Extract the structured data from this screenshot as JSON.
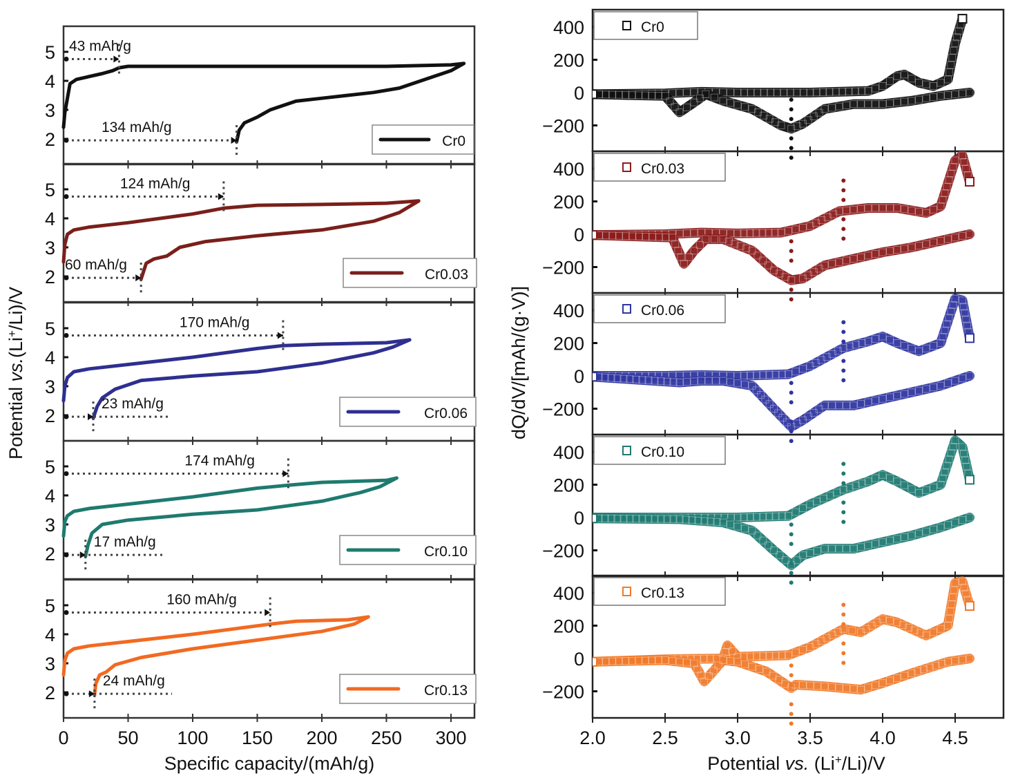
{
  "chart_data": [
    {
      "type": "line",
      "title": "",
      "xlabel": "Specific capacity/(mAh/g)",
      "ylabel": "Potential vs.(Li+/Li)/V",
      "ylabel_parts": {
        "pre": "Potential ",
        "italic": "vs.",
        "post": "(Li",
        "sup": "+",
        "tail": "/Li)/V"
      },
      "xlim": [
        0,
        320
      ],
      "ylim": [
        1,
        6
      ],
      "xticks": [
        0,
        50,
        100,
        150,
        200,
        250,
        300
      ],
      "xtick_labels": [
        "0",
        "50",
        "100",
        "150",
        "200",
        "250",
        "300"
      ],
      "yticks": [
        2,
        3,
        4,
        5
      ],
      "ytick_labels": [
        "2",
        "3",
        "4",
        "5"
      ],
      "grid": false,
      "legend_position": "bottom-right",
      "panels": [
        {
          "name": "Cr0",
          "color": "#111111",
          "charge": {
            "x": [
              0,
              1,
              3,
              5,
              10,
              20,
              30,
              38,
              43,
              50,
              100,
              150,
              200,
              250,
              300,
              310
            ],
            "y": [
              2.4,
              2.9,
              3.4,
              3.9,
              4.05,
              4.15,
              4.25,
              4.35,
              4.45,
              4.5,
              4.5,
              4.5,
              4.5,
              4.5,
              4.55,
              4.6
            ]
          },
          "discharge": {
            "x": [
              310,
              300,
              280,
              260,
              240,
              220,
              200,
              180,
              160,
              150,
              140,
              136,
              134
            ],
            "y": [
              4.6,
              4.35,
              4.05,
              3.75,
              3.6,
              3.5,
              3.4,
              3.3,
              3.0,
              2.75,
              2.55,
              2.3,
              1.9
            ]
          },
          "annotations": [
            {
              "label": "43 mAh/g",
              "x": 43,
              "y": 4.75
            },
            {
              "label": "134 mAh/g",
              "x": 134,
              "y": 1.95
            }
          ]
        },
        {
          "name": "Cr0.03",
          "color": "#7a1f1a",
          "charge": {
            "x": [
              0,
              1,
              3,
              8,
              20,
              50,
              100,
              124,
              150,
              200,
              250,
              275
            ],
            "y": [
              2.5,
              3.1,
              3.45,
              3.6,
              3.7,
              3.85,
              4.15,
              4.35,
              4.45,
              4.48,
              4.52,
              4.6
            ]
          },
          "discharge": {
            "x": [
              275,
              260,
              240,
              200,
              150,
              110,
              90,
              80,
              70,
              64,
              60
            ],
            "y": [
              4.6,
              4.2,
              3.9,
              3.6,
              3.4,
              3.2,
              3.0,
              2.7,
              2.6,
              2.45,
              1.9
            ]
          },
          "annotations": [
            {
              "label": "124 mAh/g",
              "x": 124,
              "y": 4.75
            },
            {
              "label": "60 mAh/g",
              "x": 60,
              "y": 1.95
            }
          ]
        },
        {
          "name": "Cr0.06",
          "color": "#2e2f8f",
          "charge": {
            "x": [
              0,
              1,
              3,
              8,
              20,
              50,
              100,
              150,
              170,
              200,
              250,
              268
            ],
            "y": [
              2.5,
              3.0,
              3.3,
              3.5,
              3.6,
              3.75,
              4.0,
              4.3,
              4.4,
              4.45,
              4.5,
              4.6
            ]
          },
          "discharge": {
            "x": [
              268,
              255,
              240,
              200,
              150,
              100,
              60,
              40,
              30,
              26,
              23
            ],
            "y": [
              4.6,
              4.35,
              4.15,
              3.8,
              3.5,
              3.35,
              3.2,
              2.9,
              2.6,
              2.3,
              1.9
            ]
          },
          "annotations": [
            {
              "label": "170 mAh/g",
              "x": 170,
              "y": 4.75
            },
            {
              "label": "23 mAh/g",
              "x": 23,
              "y": 1.95
            }
          ]
        },
        {
          "name": "Cr0.10",
          "color": "#1f7a6f",
          "charge": {
            "x": [
              0,
              1,
              3,
              8,
              20,
              50,
              100,
              150,
              174,
              200,
              250,
              258
            ],
            "y": [
              2.6,
              3.1,
              3.3,
              3.45,
              3.55,
              3.7,
              3.95,
              4.25,
              4.35,
              4.45,
              4.52,
              4.6
            ]
          },
          "discharge": {
            "x": [
              258,
              245,
              230,
              200,
              150,
              100,
              50,
              30,
              22,
              19,
              17
            ],
            "y": [
              4.6,
              4.3,
              4.1,
              3.8,
              3.5,
              3.35,
              3.15,
              3.0,
              2.7,
              2.3,
              1.9
            ]
          },
          "annotations": [
            {
              "label": "174 mAh/g",
              "x": 174,
              "y": 4.75
            },
            {
              "label": "17 mAh/g",
              "x": 17,
              "y": 1.95
            }
          ]
        },
        {
          "name": "Cr0.13",
          "color": "#f26a21",
          "charge": {
            "x": [
              0,
              1,
              3,
              8,
              20,
              50,
              100,
              160,
              180,
              220,
              236
            ],
            "y": [
              2.6,
              3.1,
              3.35,
              3.5,
              3.6,
              3.75,
              4.0,
              4.35,
              4.45,
              4.5,
              4.6
            ]
          },
          "discharge": {
            "x": [
              236,
              225,
              200,
              150,
              100,
              60,
              40,
              33,
              28,
              25,
              24
            ],
            "y": [
              4.6,
              4.35,
              4.1,
              3.8,
              3.5,
              3.2,
              2.95,
              2.7,
              2.6,
              2.3,
              1.9
            ]
          },
          "annotations": [
            {
              "label": "160 mAh/g",
              "x": 160,
              "y": 4.75
            },
            {
              "label": "24 mAh/g",
              "x": 24,
              "y": 1.95
            }
          ]
        }
      ]
    },
    {
      "type": "scatter",
      "title": "",
      "xlabel": "Potential vs. (Li+/Li)/V",
      "xlabel_parts": {
        "pre": "Potential ",
        "italic": "vs.",
        "post": " (Li",
        "sup": "+",
        "tail": "/Li)/V"
      },
      "ylabel": "dQ/dV/[mAh/(g·V)]",
      "xlim": [
        2.0,
        4.8
      ],
      "ylim": [
        -350,
        500
      ],
      "xticks": [
        2.0,
        2.5,
        3.0,
        3.5,
        4.0,
        4.5
      ],
      "xtick_labels": [
        "2.0",
        "2.5",
        "3.0",
        "3.5",
        "4.0",
        "4.5"
      ],
      "yticks": [
        400,
        200,
        0,
        -200
      ],
      "ytick_labels": [
        "400",
        "200",
        "0",
        "−200"
      ],
      "grid": false,
      "legend_position": "top-left",
      "marker": "open-square",
      "panels": [
        {
          "name": "Cr0",
          "color": "#111111",
          "charge": {
            "x": [
              2.0,
              2.5,
              2.75,
              3.0,
              3.5,
              3.9,
              4.0,
              4.1,
              4.15,
              4.25,
              4.35,
              4.45,
              4.5,
              4.55
            ],
            "y": [
              -10,
              -5,
              5,
              0,
              0,
              10,
              40,
              100,
              110,
              60,
              40,
              80,
              300,
              450
            ]
          },
          "discharge": {
            "x": [
              4.6,
              4.4,
              4.2,
              4.0,
              3.8,
              3.6,
              3.45,
              3.37,
              3.3,
              3.1,
              2.9,
              2.78,
              2.7,
              2.6,
              2.5,
              2.0
            ],
            "y": [
              0,
              -20,
              -50,
              -70,
              -70,
              -100,
              -190,
              -220,
              -200,
              -100,
              -50,
              -10,
              -60,
              -120,
              -20,
              -10
            ]
          },
          "markers_x": [
            3.37
          ]
        },
        {
          "name": "Cr0.03",
          "color": "#8b1c1c",
          "charge": {
            "x": [
              2.0,
              2.5,
              2.75,
              3.0,
              3.3,
              3.5,
              3.7,
              3.9,
              4.1,
              4.3,
              4.4,
              4.5,
              4.55,
              4.6
            ],
            "y": [
              -5,
              0,
              10,
              5,
              10,
              50,
              140,
              160,
              160,
              130,
              170,
              450,
              480,
              320
            ]
          },
          "discharge": {
            "x": [
              4.6,
              4.4,
              4.2,
              4.0,
              3.8,
              3.6,
              3.45,
              3.37,
              3.25,
              3.1,
              2.9,
              2.78,
              2.7,
              2.63,
              2.55,
              2.0
            ],
            "y": [
              0,
              -40,
              -80,
              -110,
              -150,
              -190,
              -270,
              -280,
              -220,
              -100,
              -30,
              -30,
              -100,
              -180,
              -20,
              -5
            ]
          },
          "markers_x": [
            3.37,
            3.73
          ]
        },
        {
          "name": "Cr0.06",
          "color": "#2f36a0",
          "charge": {
            "x": [
              2.0,
              2.5,
              2.75,
              3.0,
              3.35,
              3.5,
              3.73,
              3.9,
              4.0,
              4.1,
              4.25,
              4.4,
              4.5,
              4.55,
              4.6
            ],
            "y": [
              0,
              0,
              5,
              0,
              10,
              60,
              170,
              210,
              240,
              200,
              150,
              200,
              470,
              460,
              230
            ]
          },
          "discharge": {
            "x": [
              4.6,
              4.4,
              4.2,
              4.0,
              3.8,
              3.6,
              3.45,
              3.37,
              3.25,
              3.1,
              2.9,
              2.75,
              2.6,
              2.0
            ],
            "y": [
              0,
              -60,
              -100,
              -140,
              -180,
              -180,
              -270,
              -310,
              -200,
              -60,
              -30,
              -30,
              -40,
              -5
            ]
          },
          "markers_x": [
            3.37,
            3.73
          ]
        },
        {
          "name": "Cr0.10",
          "color": "#1f7a72",
          "charge": {
            "x": [
              2.0,
              2.5,
              3.0,
              3.35,
              3.5,
              3.73,
              3.9,
              4.0,
              4.1,
              4.25,
              4.4,
              4.5,
              4.55,
              4.6
            ],
            "y": [
              0,
              0,
              0,
              10,
              80,
              170,
              220,
              260,
              220,
              150,
              200,
              470,
              430,
              230
            ]
          },
          "discharge": {
            "x": [
              4.6,
              4.4,
              4.2,
              4.0,
              3.8,
              3.6,
              3.45,
              3.37,
              3.25,
              3.1,
              2.9,
              2.6,
              2.0
            ],
            "y": [
              0,
              -60,
              -110,
              -150,
              -190,
              -190,
              -230,
              -290,
              -200,
              -80,
              -30,
              -10,
              -5
            ]
          },
          "markers_x": [
            3.37,
            3.73
          ]
        },
        {
          "name": "Cr0.13",
          "color": "#f07a2a",
          "charge": {
            "x": [
              2.0,
              2.5,
              2.9,
              2.93,
              3.0,
              3.35,
              3.5,
              3.73,
              3.85,
              4.0,
              4.1,
              4.3,
              4.45,
              4.5,
              4.55,
              4.6
            ],
            "y": [
              -20,
              -5,
              0,
              80,
              10,
              20,
              70,
              180,
              160,
              240,
              220,
              140,
              200,
              460,
              470,
              320
            ]
          },
          "discharge": {
            "x": [
              4.6,
              4.45,
              4.2,
              4.0,
              3.85,
              3.6,
              3.4,
              3.37,
              3.2,
              3.0,
              2.9,
              2.77,
              2.7,
              2.5,
              2.0
            ],
            "y": [
              0,
              -20,
              -90,
              -150,
              -190,
              -170,
              -160,
              -180,
              -80,
              -20,
              -10,
              -140,
              -30,
              -10,
              -20
            ]
          },
          "markers_x": [
            3.37,
            3.73
          ]
        }
      ]
    }
  ]
}
